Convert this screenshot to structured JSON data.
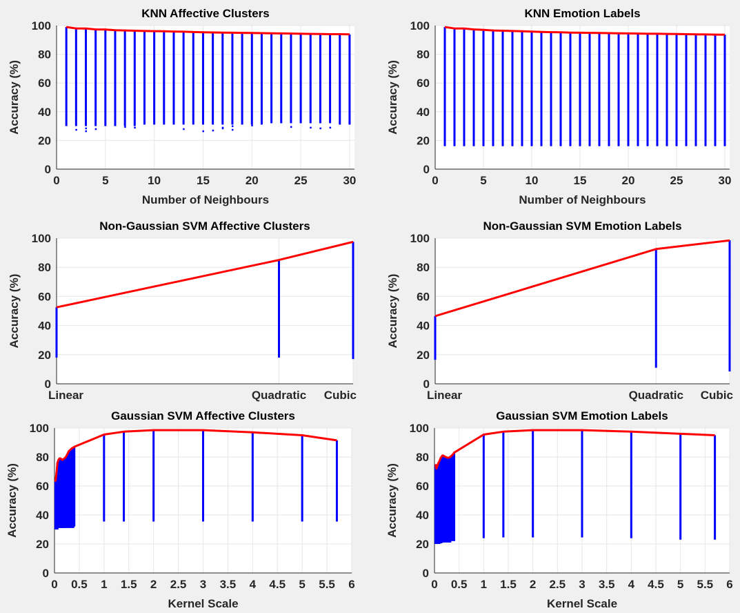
{
  "chart_data": [
    {
      "id": "knn-affective",
      "type": "scatter",
      "title": "KNN Affective Clusters",
      "xlabel": "Number of Neighbours",
      "ylabel": "Accuracy (%)",
      "xlim": [
        0,
        30.5
      ],
      "ylim": [
        0,
        100
      ],
      "xticks": [
        0,
        5,
        10,
        15,
        20,
        25,
        30
      ],
      "xticklabels": [
        "0",
        "5",
        "10",
        "15",
        "20",
        "25",
        "30"
      ],
      "yticks": [
        0,
        20,
        40,
        60,
        80,
        100
      ],
      "grid": true,
      "colors": {
        "points": "#0000ff",
        "line": "#ff0000"
      },
      "x": [
        1,
        2,
        3,
        4,
        5,
        6,
        7,
        8,
        9,
        10,
        11,
        12,
        13,
        14,
        15,
        16,
        17,
        18,
        19,
        20,
        21,
        22,
        23,
        24,
        25,
        26,
        27,
        28,
        29,
        30
      ],
      "max": [
        99.0,
        98.0,
        98.0,
        97.3,
        97.2,
        96.8,
        96.6,
        96.4,
        96.2,
        96.1,
        96.0,
        95.8,
        95.7,
        95.5,
        95.3,
        95.2,
        95.1,
        95.0,
        94.9,
        94.8,
        94.7,
        94.6,
        94.5,
        94.4,
        94.3,
        94.2,
        94.1,
        94.0,
        94.0,
        93.9
      ],
      "min": [
        30,
        30,
        30,
        30,
        30,
        30,
        30,
        30,
        31,
        31,
        31,
        31,
        31,
        31,
        31,
        31,
        31,
        31,
        31,
        31,
        31,
        32,
        32,
        32,
        32,
        32,
        32,
        32,
        31,
        31
      ],
      "outliers": [
        [
          2,
          27.5
        ],
        [
          3,
          26.5
        ],
        [
          3,
          28.5
        ],
        [
          4,
          28
        ],
        [
          7,
          29.5
        ],
        [
          8,
          29
        ],
        [
          13,
          28
        ],
        [
          15,
          26.5
        ],
        [
          16,
          27
        ],
        [
          17,
          29
        ],
        [
          17,
          28.5
        ],
        [
          18,
          27.5
        ],
        [
          18,
          30
        ],
        [
          20,
          30.5
        ],
        [
          24,
          29.5
        ],
        [
          26,
          29
        ],
        [
          27,
          28.5
        ],
        [
          28,
          29
        ]
      ]
    },
    {
      "id": "knn-emotion",
      "type": "scatter",
      "title": "KNN Emotion Labels",
      "xlabel": "Number of Neighbours",
      "ylabel": "Accuracy (%)",
      "xlim": [
        0,
        30.5
      ],
      "ylim": [
        0,
        100
      ],
      "xticks": [
        0,
        5,
        10,
        15,
        20,
        25,
        30
      ],
      "xticklabels": [
        "0",
        "5",
        "10",
        "15",
        "20",
        "25",
        "30"
      ],
      "yticks": [
        0,
        20,
        40,
        60,
        80,
        100
      ],
      "grid": true,
      "colors": {
        "points": "#0000ff",
        "line": "#ff0000"
      },
      "x": [
        1,
        2,
        3,
        4,
        5,
        6,
        7,
        8,
        9,
        10,
        11,
        12,
        13,
        14,
        15,
        16,
        17,
        18,
        19,
        20,
        21,
        22,
        23,
        24,
        25,
        26,
        27,
        28,
        29,
        30
      ],
      "max": [
        99.0,
        98.0,
        98.0,
        97.3,
        97.0,
        96.6,
        96.4,
        96.2,
        96.0,
        95.8,
        95.6,
        95.4,
        95.3,
        95.1,
        95.0,
        94.9,
        94.8,
        94.7,
        94.6,
        94.5,
        94.4,
        94.3,
        94.3,
        94.2,
        94.1,
        94.0,
        93.9,
        93.8,
        93.7,
        93.6
      ],
      "min": [
        16,
        16,
        16,
        16,
        16,
        16,
        16,
        16,
        16,
        16,
        16,
        16,
        16,
        16,
        16,
        16,
        16,
        16,
        16,
        16,
        16,
        16,
        16,
        16,
        16,
        16,
        16,
        16,
        16,
        16
      ],
      "outliers": []
    },
    {
      "id": "svm-affective",
      "type": "scatter",
      "title": "Non-Gaussian SVM Affective Clusters",
      "xlabel": "",
      "ylabel": "Accuracy (%)",
      "xlim": [
        0,
        2
      ],
      "ylim": [
        0,
        100
      ],
      "xticks": [
        0,
        1.5,
        2
      ],
      "xticklabels": [
        "Linear",
        "Quadratic",
        "Cubic"
      ],
      "yticks": [
        0,
        20,
        40,
        60,
        80,
        100
      ],
      "grid": true,
      "colors": {
        "points": "#0000ff",
        "line": "#ff0000"
      },
      "x": [
        0,
        1.5,
        2
      ],
      "max": [
        52.5,
        85,
        97.5
      ],
      "min": [
        18,
        18,
        17
      ],
      "outliers": []
    },
    {
      "id": "svm-emotion",
      "type": "scatter",
      "title": "Non-Gaussian SVM Emotion Labels",
      "xlabel": "",
      "ylabel": "Accuracy (%)",
      "xlim": [
        0,
        2
      ],
      "ylim": [
        0,
        100
      ],
      "xticks": [
        0,
        1.5,
        2
      ],
      "xticklabels": [
        "Linear",
        "Quadratic",
        "Cubic"
      ],
      "yticks": [
        0,
        20,
        40,
        60,
        80,
        100
      ],
      "grid": true,
      "colors": {
        "points": "#0000ff",
        "line": "#ff0000"
      },
      "x": [
        0,
        1.5,
        2
      ],
      "max": [
        46.5,
        92.5,
        98.5
      ],
      "min": [
        16.5,
        11,
        8.5
      ],
      "outliers": []
    },
    {
      "id": "gauss-affective",
      "type": "scatter",
      "title": "Gaussian SVM Affective Clusters",
      "xlabel": "Kernel Scale",
      "ylabel": "Accuracy (%)",
      "xlim": [
        0,
        6
      ],
      "ylim": [
        0,
        100
      ],
      "xticks": [
        0,
        0.5,
        1,
        1.5,
        2,
        2.5,
        3,
        3.5,
        4,
        4.5,
        5,
        5.5,
        6
      ],
      "xticklabels": [
        "0",
        "0.5",
        "1",
        "1.5",
        "2",
        "2.5",
        "3",
        "3.5",
        "4",
        "4.5",
        "5",
        "5.5",
        "6"
      ],
      "yticks": [
        0,
        20,
        40,
        60,
        80,
        100
      ],
      "grid": true,
      "colors": {
        "points": "#0000ff",
        "line": "#ff0000"
      },
      "x": [
        0.02,
        0.04,
        0.06,
        0.08,
        0.1,
        0.12,
        0.14,
        0.16,
        0.18,
        0.2,
        0.23,
        0.26,
        0.29,
        0.32,
        0.35,
        0.38,
        0.4,
        1,
        1.4,
        2,
        3,
        4,
        5,
        5.7
      ],
      "max": [
        63,
        69,
        76,
        78,
        79,
        79,
        78.5,
        78,
        78.5,
        79,
        80,
        82,
        84,
        85,
        86,
        86.5,
        87,
        95.5,
        97.5,
        98.5,
        98.5,
        97,
        95,
        91.5
      ],
      "min": [
        30,
        30,
        30,
        31,
        31,
        31,
        31,
        31,
        31,
        31,
        31,
        31,
        31,
        31,
        31,
        31,
        32,
        35.5,
        35.5,
        35.5,
        35.5,
        35.5,
        35.5,
        35.5
      ],
      "outliers": []
    },
    {
      "id": "gauss-emotion",
      "type": "scatter",
      "title": "Gaussian SVM Emotion Labels",
      "xlabel": "Kernel Scale",
      "ylabel": "Accuracy (%)",
      "xlim": [
        0,
        6
      ],
      "ylim": [
        0,
        100
      ],
      "xticks": [
        0,
        0.5,
        1,
        1.5,
        2,
        2.5,
        3,
        3.5,
        4,
        4.5,
        5,
        5.5,
        6
      ],
      "xticklabels": [
        "0",
        "0.5",
        "1",
        "1.5",
        "2",
        "2.5",
        "3",
        "3.5",
        "4",
        "4.5",
        "5",
        "5.5",
        "6"
      ],
      "yticks": [
        0,
        20,
        40,
        60,
        80,
        100
      ],
      "grid": true,
      "colors": {
        "points": "#0000ff",
        "line": "#ff0000"
      },
      "x": [
        0.02,
        0.04,
        0.06,
        0.08,
        0.1,
        0.12,
        0.14,
        0.16,
        0.18,
        0.2,
        0.23,
        0.26,
        0.29,
        0.32,
        0.35,
        0.38,
        0.4,
        1,
        1.4,
        2,
        3,
        4,
        5,
        5.7
      ],
      "max": [
        75,
        72,
        74,
        76,
        77,
        79,
        80,
        81,
        81,
        80.5,
        80,
        79.5,
        79.5,
        80,
        81,
        82,
        83,
        95.5,
        97.5,
        98.5,
        98.5,
        97.5,
        96,
        95
      ],
      "min": [
        20,
        20,
        20,
        20,
        20,
        20.5,
        20.5,
        21,
        21,
        21,
        21,
        21,
        21,
        21,
        22,
        22,
        22,
        24,
        24.5,
        24.5,
        24.5,
        24,
        23,
        23
      ],
      "outliers": []
    }
  ]
}
